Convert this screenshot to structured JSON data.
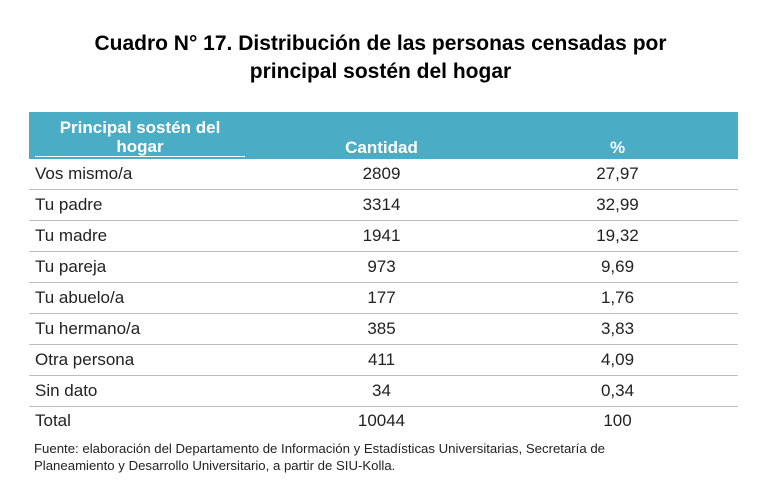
{
  "title": {
    "line1": "Cuadro N° 17. Distribución de las personas censadas por",
    "line2": "principal sostén del hogar"
  },
  "table": {
    "headers": {
      "col1": "Principal sostén del hogar",
      "col2": "Cantidad",
      "col3": "%"
    },
    "rows": [
      {
        "label": "Vos mismo/a",
        "cantidad": "2809",
        "pct": "27,97"
      },
      {
        "label": "Tu padre",
        "cantidad": "3314",
        "pct": "32,99"
      },
      {
        "label": "Tu madre",
        "cantidad": "1941",
        "pct": "19,32"
      },
      {
        "label": "Tu pareja",
        "cantidad": "973",
        "pct": "9,69"
      },
      {
        "label": "Tu abuelo/a",
        "cantidad": "177",
        "pct": "1,76"
      },
      {
        "label": "Tu hermano/a",
        "cantidad": "385",
        "pct": "3,83"
      },
      {
        "label": "Otra persona",
        "cantidad": "411",
        "pct": "4,09"
      },
      {
        "label": "Sin dato",
        "cantidad": "34",
        "pct": "0,34"
      }
    ],
    "total": {
      "label": "Total",
      "cantidad": "10044",
      "pct": "100"
    }
  },
  "source": {
    "line1": "Fuente: elaboración del Departamento de Información y Estadísticas Universitarias, Secretaría de",
    "line2": "Planeamiento y Desarrollo Universitario, a partir de  SIU-Kolla."
  },
  "colors": {
    "header_bg": "#4bacc6",
    "header_text": "#ffffff",
    "row_border": "#bdbdbd"
  }
}
